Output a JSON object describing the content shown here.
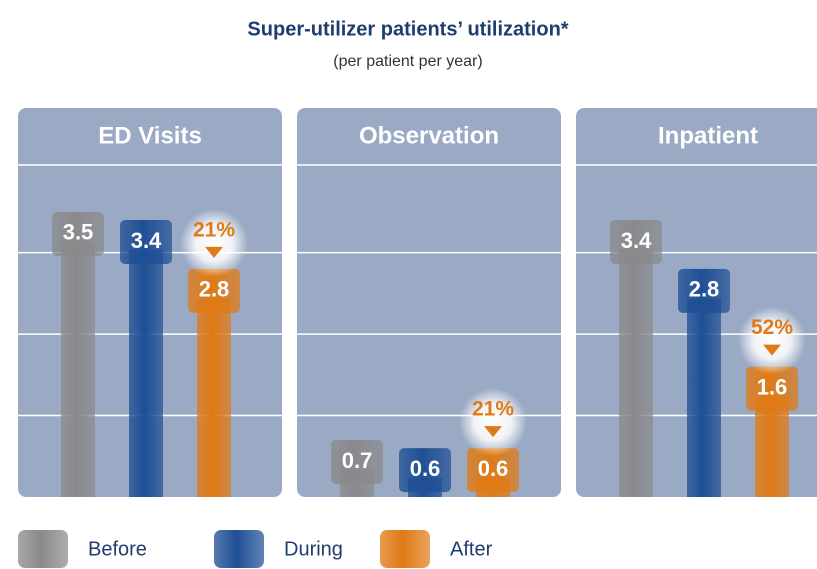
{
  "chart_data": {
    "type": "bar",
    "title": "Super-utilizer patients’ utilization*",
    "subtitle": "(per patient per year)",
    "categories": [
      "ED Visits",
      "Observation",
      "Inpatient"
    ],
    "series": [
      {
        "name": "Before",
        "color": "#8a8a8c",
        "values": [
          3.5,
          0.7,
          3.4
        ]
      },
      {
        "name": "During",
        "color": "#1f4f95",
        "values": [
          3.4,
          0.6,
          2.8
        ]
      },
      {
        "name": "After",
        "color": "#e07a16",
        "values": [
          2.8,
          0.6,
          1.6
        ]
      }
    ],
    "annotations": [
      "21%",
      "21%",
      "52%"
    ],
    "ylim": [
      0,
      4.1
    ],
    "yticks": [
      1,
      2,
      3
    ],
    "grid": true,
    "panel_color": "#9aaac4"
  }
}
